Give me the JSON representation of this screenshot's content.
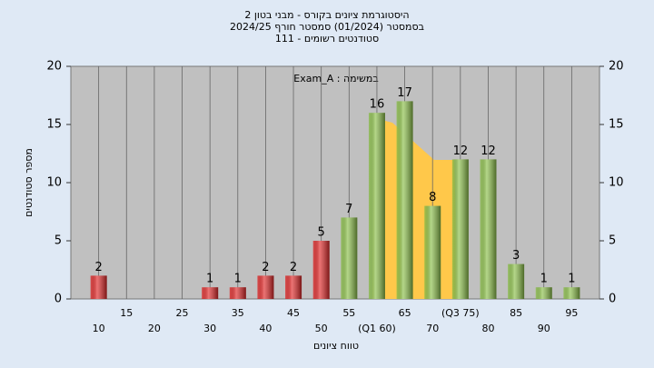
{
  "chart_data": {
    "type": "bar",
    "title": [
      "היסטוגרמת ציונים בקורס - מבני בטון 2",
      "בסמסטר  (01/2024)  סמסטר חורף 2024/25",
      "סטודנטים רשומים - 111"
    ],
    "annotation": "במשימה : Exam_A",
    "x_label": "טווח ציונים",
    "y_label": "מספר סטודנטים",
    "categories": [
      "10",
      "15",
      "20",
      "25",
      "30",
      "35",
      "40",
      "45",
      "50",
      "55",
      "(Q1 60)",
      "65",
      "70",
      "(Q3 75)",
      "80",
      "85",
      "90",
      "95"
    ],
    "values": [
      2,
      0,
      0,
      0,
      1,
      1,
      2,
      2,
      5,
      7,
      16,
      17,
      8,
      12,
      12,
      3,
      1,
      1
    ],
    "colors": [
      "#e02828",
      "#e02828",
      "#e02828",
      "#e02828",
      "#e02828",
      "#e02828",
      "#e02828",
      "#e02828",
      "#e02828",
      "#8cc04a",
      "#8cc04a",
      "#8cc04a",
      "#8cc04a",
      "#8cc04a",
      "#8cc04a",
      "#8cc04a",
      "#8cc04a",
      "#8cc04a"
    ],
    "ylim": [
      0,
      20
    ],
    "yticks": [
      0,
      5,
      10,
      15,
      20
    ]
  }
}
